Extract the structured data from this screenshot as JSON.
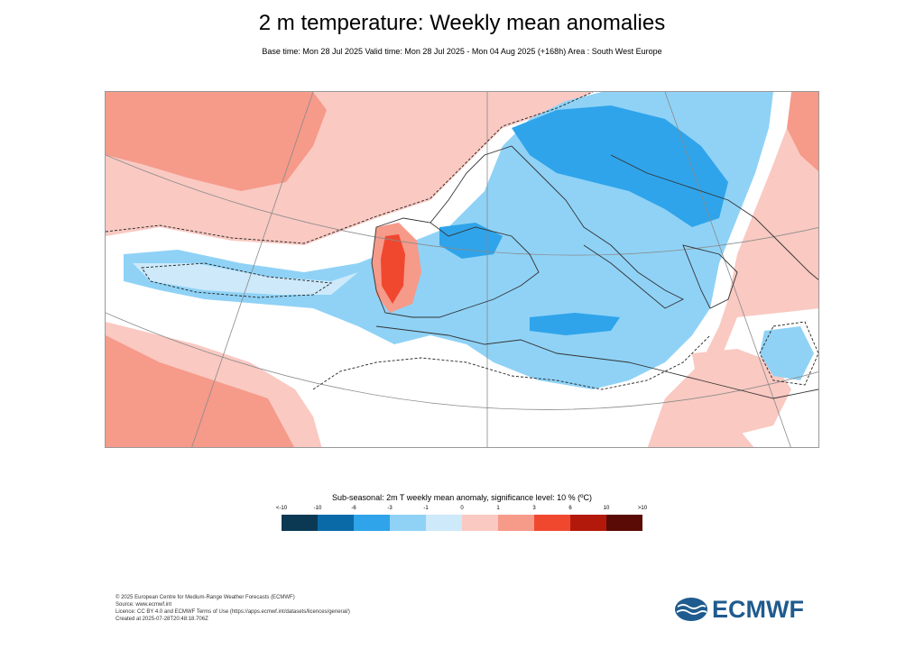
{
  "title": "2 m temperature: Weekly mean anomalies",
  "subtitle": "Base time: Mon 28 Jul 2025 Valid time: Mon 28 Jul 2025 - Mon 04 Aug 2025 (+168h) Area : South West Europe",
  "legend": {
    "title": "Sub-seasonal: 2m T weekly mean anomaly, significance level: 10 % (ºC)",
    "ticks": [
      "<-10",
      "-10",
      "-6",
      "-3",
      "-1",
      "0",
      "1",
      "3",
      "6",
      "10",
      ">10"
    ],
    "colors": [
      "#0b3954",
      "#0a6aa8",
      "#2fa4ea",
      "#8fd2f6",
      "#cde9fa",
      "#f9c9c2",
      "#f69a8a",
      "#f0482f",
      "#b3190b",
      "#5a0b05"
    ]
  },
  "footer": {
    "line1": "© 2025 European Centre for Medium-Range Weather Forecasts (ECMWF)",
    "line2": "Source: www.ecmwf.int",
    "line3": "Licence: CC BY 4.0 and ECMWF Terms of Use (https://apps.ecmwf.int/datasets/licences/general/)",
    "line4": "Created at 2025-07-28T20:48:18.706Z"
  },
  "logo": {
    "text": "ECMWF",
    "color": "#1f5b8e"
  }
}
